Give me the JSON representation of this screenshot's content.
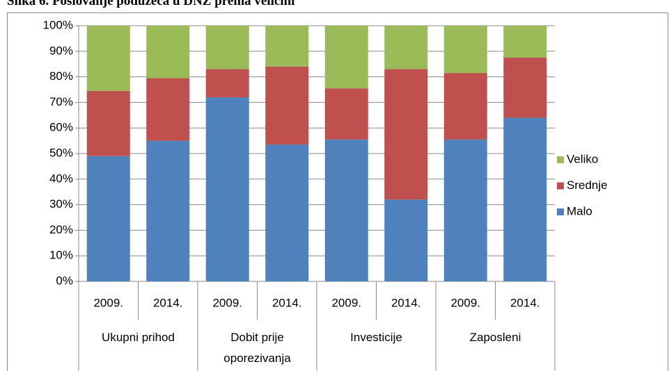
{
  "chart_data": {
    "type": "stacked_bar",
    "title": "Slika 6. Poslovanje poduzeća u DNŽ prema veličini",
    "categories": [
      "2009.",
      "2014.",
      "2009.",
      "2014.",
      "2009.",
      "2014.",
      "2009.",
      "2014."
    ],
    "groups": [
      {
        "label": "Ukupni prihod",
        "span": 2
      },
      {
        "label": "Dobit prije oporezivanja",
        "span": 2
      },
      {
        "label": "Investicije",
        "span": 2
      },
      {
        "label": "Zaposleni",
        "span": 2
      }
    ],
    "series": [
      {
        "name": "Malo",
        "color": "#4f81bd",
        "values": [
          49,
          55,
          72,
          53.5,
          55.5,
          32,
          55.5,
          64
        ]
      },
      {
        "name": "Srednje",
        "color": "#c0504d",
        "values": [
          25.5,
          24.5,
          11,
          30.5,
          20,
          51,
          26,
          23.5
        ]
      },
      {
        "name": "Veliko",
        "color": "#9bbb59",
        "values": [
          25.5,
          20.5,
          17,
          16,
          24.5,
          17,
          18.5,
          12.5
        ]
      }
    ],
    "ylim": [
      0,
      100
    ],
    "yticks": [
      {
        "value": 0,
        "label": "0%"
      },
      {
        "value": 10,
        "label": "10%"
      },
      {
        "value": 20,
        "label": "20%"
      },
      {
        "value": 30,
        "label": "30%"
      },
      {
        "value": 40,
        "label": "40%"
      },
      {
        "value": 50,
        "label": "50%"
      },
      {
        "value": 60,
        "label": "60%"
      },
      {
        "value": 70,
        "label": "70%"
      },
      {
        "value": 80,
        "label": "80%"
      },
      {
        "value": 90,
        "label": "90%"
      },
      {
        "value": 100,
        "label": "100%"
      }
    ],
    "grid": true,
    "legend": "right"
  }
}
